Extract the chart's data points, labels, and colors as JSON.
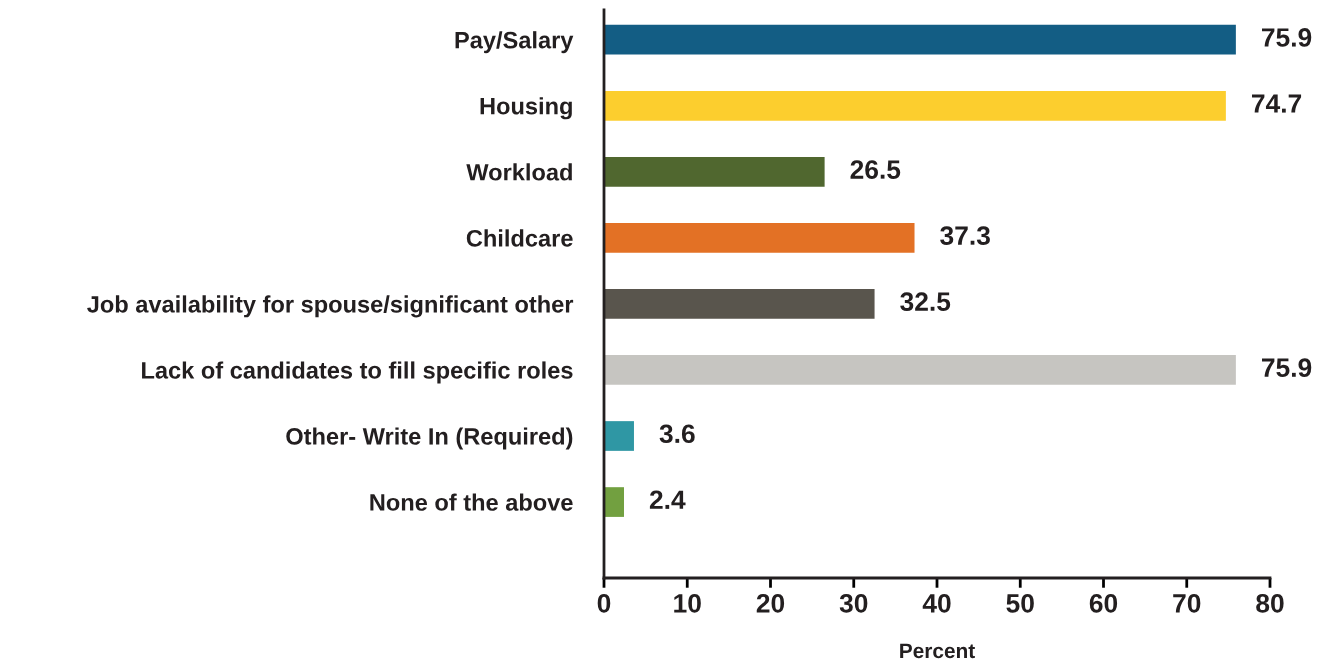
{
  "chart_data": {
    "type": "bar",
    "orientation": "horizontal",
    "xlabel": "Percent",
    "categories": [
      "Pay/Salary",
      "Housing",
      "Workload",
      "Childcare",
      "Job availability for spouse/significant other",
      "Lack of candidates to fill specific roles",
      "Other- Write In (Required)",
      "None of the above"
    ],
    "values": [
      75.9,
      74.7,
      26.5,
      37.3,
      32.5,
      75.9,
      3.6,
      2.4
    ],
    "colors": [
      "#135d84",
      "#fcce2e",
      "#50672f",
      "#e37125",
      "#59554d",
      "#c6c5c1",
      "#2f97a4",
      "#72a040"
    ],
    "xlim": [
      0,
      80
    ],
    "xticks": [
      0,
      10,
      20,
      30,
      40,
      50,
      60,
      70,
      80
    ],
    "data_labels": true,
    "grid": false,
    "legend": false
  }
}
